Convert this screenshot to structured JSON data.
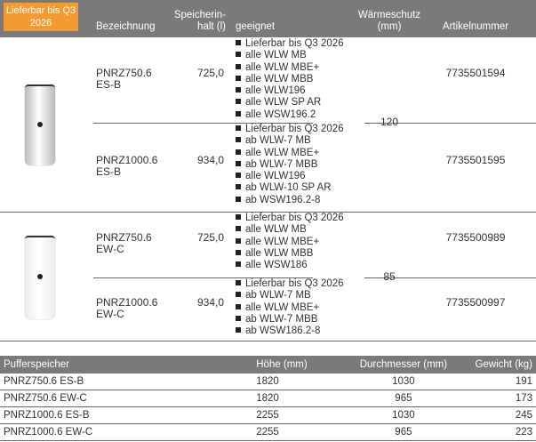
{
  "header": {
    "badge": "Lieferbar bis Q3 2026",
    "bezeichnung": "Bezeichnung",
    "speicher_l1": "Speicherin-",
    "speicher_l2": "halt (l)",
    "geeignet": "geeignet",
    "waerme_l1": "Wärmeschutz",
    "waerme_l2": "(mm)",
    "artikel": "Artikelnummer"
  },
  "groups": [
    {
      "waermeschutz": "120",
      "tank_color": "#b8b8b8",
      "rows": [
        {
          "name1": "PNRZ750.6",
          "name2": "ES-B",
          "inhalt": "725,0",
          "artikel": "7735501594",
          "geeignet": [
            "Lieferbar bis Q3 2026",
            "alle WLW MB",
            "alle WLW MBE+",
            "alle WLW MBB",
            "alle WLW196",
            "alle WLW SP AR",
            "alle WSW196.2"
          ]
        },
        {
          "name1": "PNRZ1000.6",
          "name2": "ES-B",
          "inhalt": "934,0",
          "artikel": "7735501595",
          "geeignet": [
            "Lieferbar bis Q3 2026",
            "ab WLW-7 MB",
            "alle WLW MBE+",
            "ab WLW-7 MBB",
            "alle WLW196",
            "ab WLW-10 SP AR",
            "ab WSW196.2-8"
          ]
        }
      ]
    },
    {
      "waermeschutz": "85",
      "tank_color": "#ececec",
      "rows": [
        {
          "name1": "PNRZ750.6",
          "name2": "EW-C",
          "inhalt": "725,0",
          "artikel": "7735500989",
          "geeignet": [
            "Lieferbar bis Q3 2026",
            "alle WLW MB",
            "alle WLW MBE+",
            "alle WLW MBB",
            "alle WSW186"
          ]
        },
        {
          "name1": "PNRZ1000.6",
          "name2": "EW-C",
          "inhalt": "934,0",
          "artikel": "7735500997",
          "geeignet": [
            "Lieferbar bis Q3 2026",
            "ab WLW-7 MB",
            "alle WLW MBE+",
            "ab WLW-7 MBB",
            "ab WSW186.2-8"
          ]
        }
      ]
    }
  ],
  "spec_table": {
    "headers": [
      "Pufferspeicher",
      "Höhe (mm)",
      "Durchmesser (mm)",
      "Gewicht (kg)"
    ],
    "rows": [
      [
        "PNRZ750.6 ES-B",
        "1820",
        "1030",
        "191"
      ],
      [
        "PNRZ750.6 EW-C",
        "1820",
        "965",
        "173"
      ],
      [
        "PNRZ1000.6 ES-B",
        "2255",
        "1030",
        "245"
      ],
      [
        "PNRZ1000.6 EW-C",
        "2255",
        "965",
        "223"
      ]
    ]
  }
}
